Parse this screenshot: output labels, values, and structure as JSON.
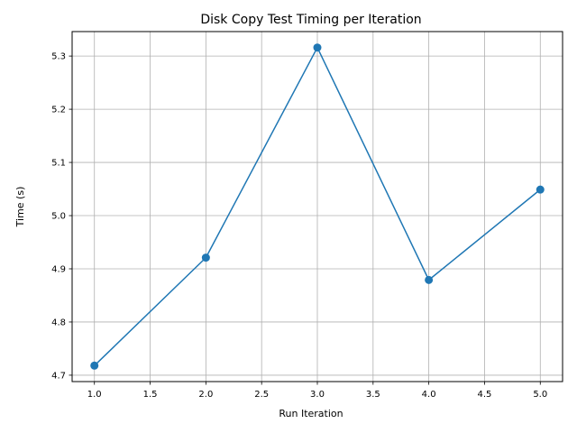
{
  "chart_data": {
    "type": "line",
    "title": "Disk Copy Test Timing per Iteration",
    "xlabel": "Run Iteration",
    "ylabel": "Time (s)",
    "x": [
      1,
      2,
      3,
      4,
      5
    ],
    "series": [
      {
        "values": [
          4.718,
          4.921,
          5.316,
          4.879,
          5.049
        ],
        "color": "#1f77b4",
        "marker": "circle"
      }
    ],
    "xlim": [
      0.8,
      5.2
    ],
    "ylim": [
      4.688,
      5.346
    ],
    "xticks": [
      "1.0",
      "1.5",
      "2.0",
      "2.5",
      "3.0",
      "3.5",
      "4.0",
      "4.5",
      "5.0"
    ],
    "yticks": [
      "4.7",
      "4.8",
      "4.9",
      "5.0",
      "5.1",
      "5.2",
      "5.3"
    ],
    "grid": true,
    "grid_color": "#b0b0b0",
    "axis_color": "#000000"
  }
}
